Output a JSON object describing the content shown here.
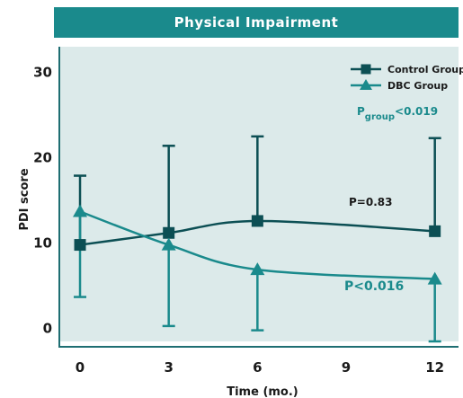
{
  "chart_data": {
    "type": "line",
    "title": "Physical Impairment",
    "xlabel": "Time (mo.)",
    "ylabel": "PDI score",
    "x": [
      0,
      3,
      6,
      12
    ],
    "xticks": [
      0,
      3,
      6,
      9,
      12
    ],
    "yticks": [
      0,
      10,
      20,
      30
    ],
    "xlim": [
      -0.7,
      12.8
    ],
    "ylim": [
      -1.5,
      33
    ],
    "grid": false,
    "legend_position": "top-right",
    "series": [
      {
        "name": "Control Group",
        "marker": "square",
        "color": "#0c4f54",
        "values": [
          9.8,
          11.2,
          12.6,
          11.4
        ],
        "error_high": [
          17.9,
          21.4,
          22.5,
          22.3
        ],
        "error_low": [
          null,
          null,
          null,
          null
        ]
      },
      {
        "name": "DBC Group",
        "marker": "triangle",
        "color": "#1a8a8c",
        "values": [
          13.7,
          9.8,
          6.9,
          5.8
        ],
        "error_high": [
          null,
          null,
          null,
          null
        ],
        "error_low": [
          3.7,
          0.3,
          -0.2,
          -1.5
        ]
      }
    ],
    "annotations": {
      "p_group": "P",
      "p_group_sub": "group",
      "p_group_value": "<0.019",
      "p_control": "P=0.83",
      "p_dbc": "P<0.016"
    }
  },
  "colors": {
    "banner": "#1a8a8c",
    "plot_bg": "#dceaea",
    "axis": "#1e6e72"
  }
}
